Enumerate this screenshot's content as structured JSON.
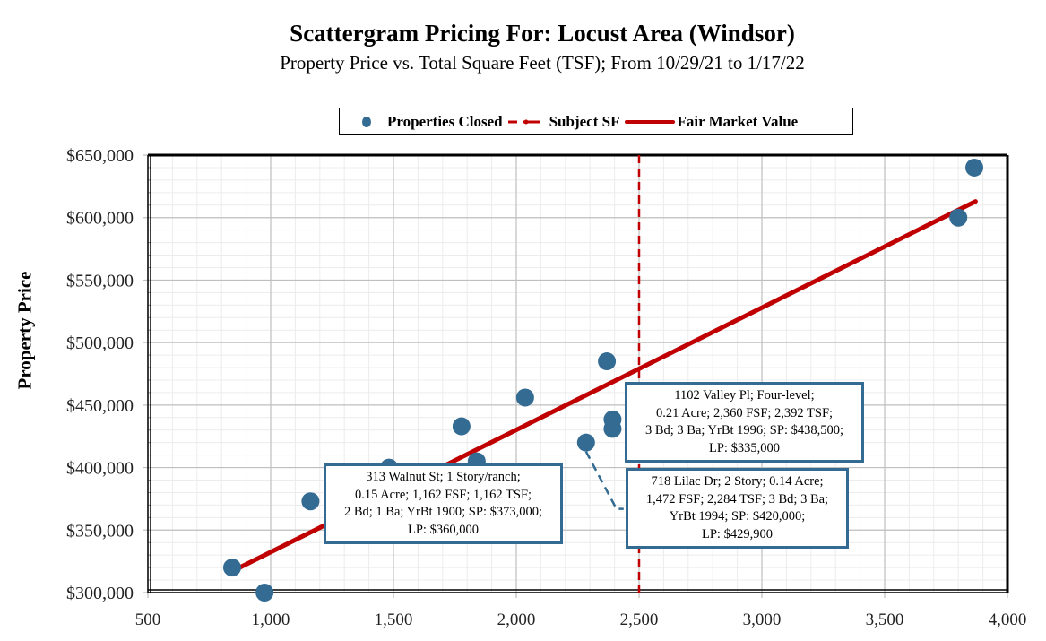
{
  "chart_data": {
    "type": "scatter",
    "title": "Scattergram Pricing For: Locust Area (Windsor)",
    "subtitle": "Property Price vs. Total Square Feet (TSF); From 10/29/21 to 1/17/22",
    "xlabel": "",
    "ylabel": "Property Price",
    "xlim": [
      500,
      4000
    ],
    "ylim": [
      300000,
      650000
    ],
    "x_ticks": [
      500,
      1000,
      1500,
      2000,
      2500,
      3000,
      3500,
      4000
    ],
    "x_tick_labels": [
      "500",
      "1,000",
      "1,500",
      "2,000",
      "2,500",
      "3,000",
      "3,500",
      "4,000"
    ],
    "y_ticks": [
      300000,
      350000,
      400000,
      450000,
      500000,
      550000,
      600000,
      650000
    ],
    "y_tick_labels": [
      "$300,000",
      "$350,000",
      "$400,000",
      "$450,000",
      "$500,000",
      "$550,000",
      "$600,000",
      "$650,000"
    ],
    "x_minor_step": 100,
    "y_minor_step": 10000,
    "grid": true,
    "legend_position": "top-center",
    "legend": [
      {
        "label": "Properties Closed",
        "type": "marker",
        "color": "#336b92"
      },
      {
        "label": "Subject SF",
        "type": "dashed-line",
        "color": "#c00000"
      },
      {
        "label": "Fair Market Value",
        "type": "line",
        "color": "#c00000"
      }
    ],
    "series": [
      {
        "name": "Properties Closed",
        "color": "#336b92",
        "points": [
          {
            "x": 843,
            "y": 320000
          },
          {
            "x": 975,
            "y": 300000
          },
          {
            "x": 1162,
            "y": 373000
          },
          {
            "x": 1482,
            "y": 400000
          },
          {
            "x": 1777,
            "y": 433000
          },
          {
            "x": 1839,
            "y": 405000
          },
          {
            "x": 2036,
            "y": 456000
          },
          {
            "x": 2284,
            "y": 420000
          },
          {
            "x": 2369,
            "y": 485000
          },
          {
            "x": 2392,
            "y": 438500
          },
          {
            "x": 2392,
            "y": 431000
          },
          {
            "x": 3800,
            "y": 600000
          },
          {
            "x": 3865,
            "y": 640000
          }
        ]
      },
      {
        "name": "Subject SF",
        "color": "#c00000",
        "x": 2500
      },
      {
        "name": "Fair Market Value",
        "color": "#c00000",
        "points": [
          {
            "x": 843,
            "y": 317000
          },
          {
            "x": 3870,
            "y": 613000
          }
        ]
      }
    ],
    "annotations": [
      {
        "id": "walnut",
        "anchor": {
          "x": 1162,
          "y": 373000
        },
        "lines": [
          "313 Walnut St; 1 Story/ranch;",
          "0.15 Acre; 1,162 FSF; 1,162 TSF;",
          "2 Bd; 1 Ba; YrBt 1900; SP: $373,000;",
          "LP: $360,000"
        ]
      },
      {
        "id": "valley",
        "anchor": {
          "x": 2392,
          "y": 438500
        },
        "lines": [
          "1102 Valley Pl; Four-level;",
          "0.21 Acre; 2,360 FSF; 2,392 TSF;",
          "3 Bd; 3 Ba; YrBt 1996; SP: $438,500;",
          "LP: $335,000"
        ]
      },
      {
        "id": "lilac",
        "anchor": {
          "x": 2284,
          "y": 420000
        },
        "lines": [
          "718 Lilac Dr; 2 Story; 0.14 Acre;",
          "1,472 FSF; 2,284 TSF; 3 Bd; 3 Ba;",
          "YrBt 1994; SP: $420,000;",
          "LP: $429,900"
        ]
      }
    ]
  }
}
